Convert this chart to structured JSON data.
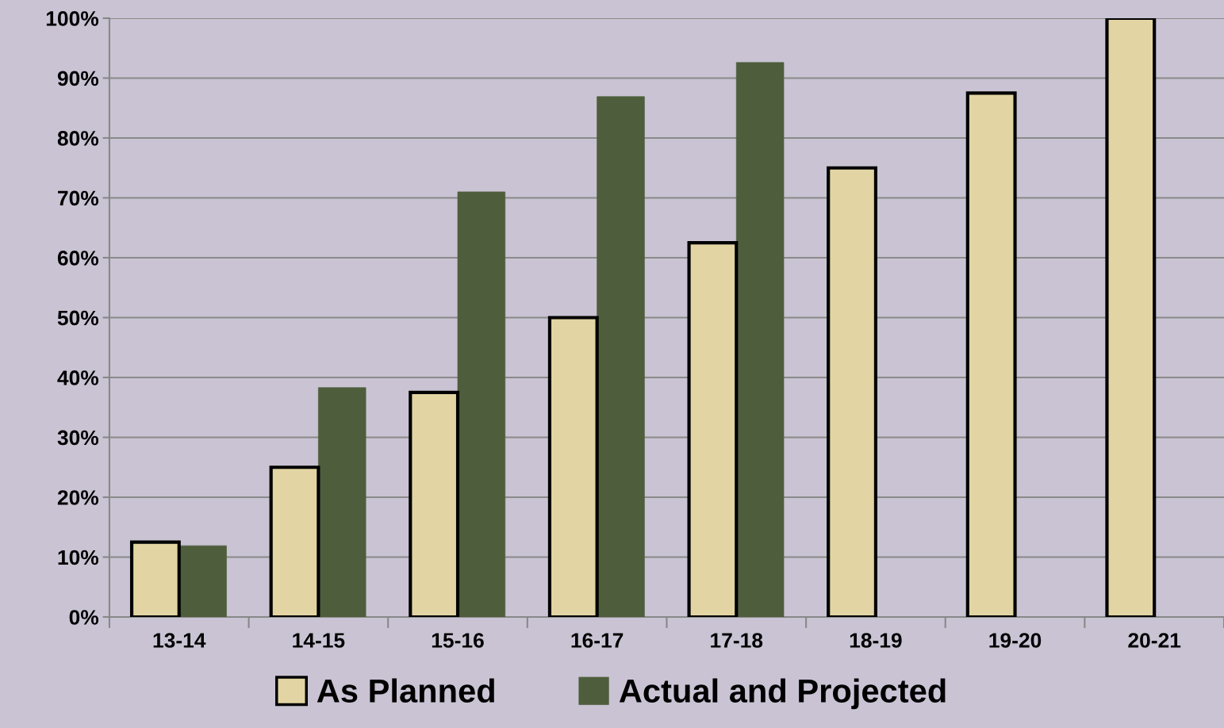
{
  "chart_data": {
    "type": "bar",
    "categories": [
      "13-14",
      "14-15",
      "15-16",
      "16-17",
      "17-18",
      "18-19",
      "19-20",
      "20-21"
    ],
    "series": [
      {
        "name": "As Planned",
        "color": "#e2d5a3",
        "values": [
          12.5,
          25,
          37.5,
          50,
          62.5,
          75,
          87.5,
          100
        ]
      },
      {
        "name": "Actual and Projected",
        "color": "#4e5e3c",
        "values": [
          11.9,
          38.3,
          71.0,
          86.9,
          92.6,
          null,
          null,
          null
        ]
      }
    ],
    "ylim": [
      0,
      100
    ],
    "yticks": [
      {
        "value": 0,
        "label": "0%"
      },
      {
        "value": 10,
        "label": "10%"
      },
      {
        "value": 20,
        "label": "20%"
      },
      {
        "value": 30,
        "label": "30%"
      },
      {
        "value": 40,
        "label": "40%"
      },
      {
        "value": 50,
        "label": "50%"
      },
      {
        "value": 60,
        "label": "60%"
      },
      {
        "value": 70,
        "label": "70%"
      },
      {
        "value": 80,
        "label": "80%"
      },
      {
        "value": 90,
        "label": "90%"
      },
      {
        "value": 100,
        "label": "100%"
      }
    ],
    "grid": "y",
    "legend": "bottom"
  }
}
